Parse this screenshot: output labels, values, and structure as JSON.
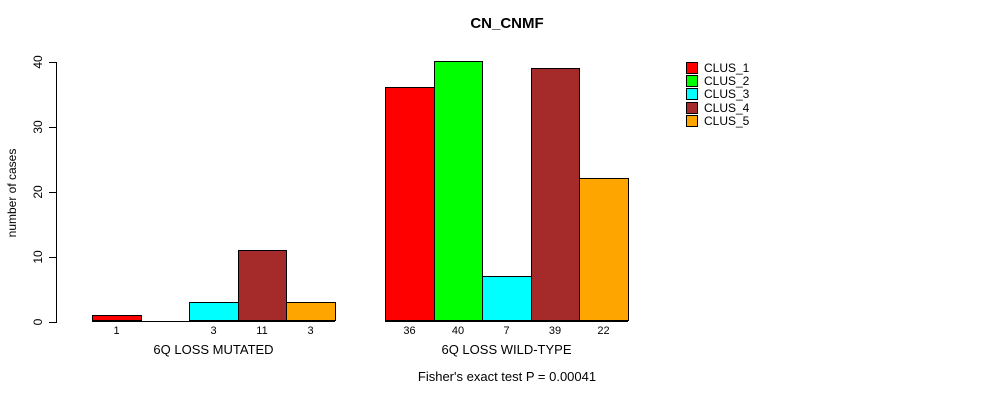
{
  "chart_data": {
    "type": "bar",
    "title": "CN_CNMF",
    "ylabel": "number of cases",
    "xlabel": "Fisher's exact test P = 0.00041",
    "ylim": [
      0,
      40
    ],
    "yticks": [
      0,
      10,
      20,
      30,
      40
    ],
    "grid": false,
    "legend_position": "right",
    "categories": [
      "6Q LOSS MUTATED",
      "6Q LOSS WILD-TYPE"
    ],
    "series": [
      {
        "name": "CLUS_1",
        "color": "#ff0000",
        "values": [
          1,
          36
        ]
      },
      {
        "name": "CLUS_2",
        "color": "#00ff00",
        "values": [
          0,
          40
        ]
      },
      {
        "name": "CLUS_3",
        "color": "#00ffff",
        "values": [
          3,
          7
        ]
      },
      {
        "name": "CLUS_4",
        "color": "#a52a2a",
        "values": [
          11,
          39
        ]
      },
      {
        "name": "CLUS_5",
        "color": "#ffa500",
        "values": [
          3,
          22
        ]
      }
    ],
    "bar_value_labels": [
      [
        "1",
        "",
        "3",
        "11",
        "3"
      ],
      [
        "36",
        "40",
        "7",
        "39",
        "22"
      ]
    ]
  },
  "legend": {
    "items": [
      {
        "label": "CLUS_1",
        "color": "#ff0000"
      },
      {
        "label": "CLUS_2",
        "color": "#00ff00"
      },
      {
        "label": "CLUS_3",
        "color": "#00ffff"
      },
      {
        "label": "CLUS_4",
        "color": "#a52a2a"
      },
      {
        "label": "CLUS_5",
        "color": "#ffa500"
      }
    ]
  }
}
